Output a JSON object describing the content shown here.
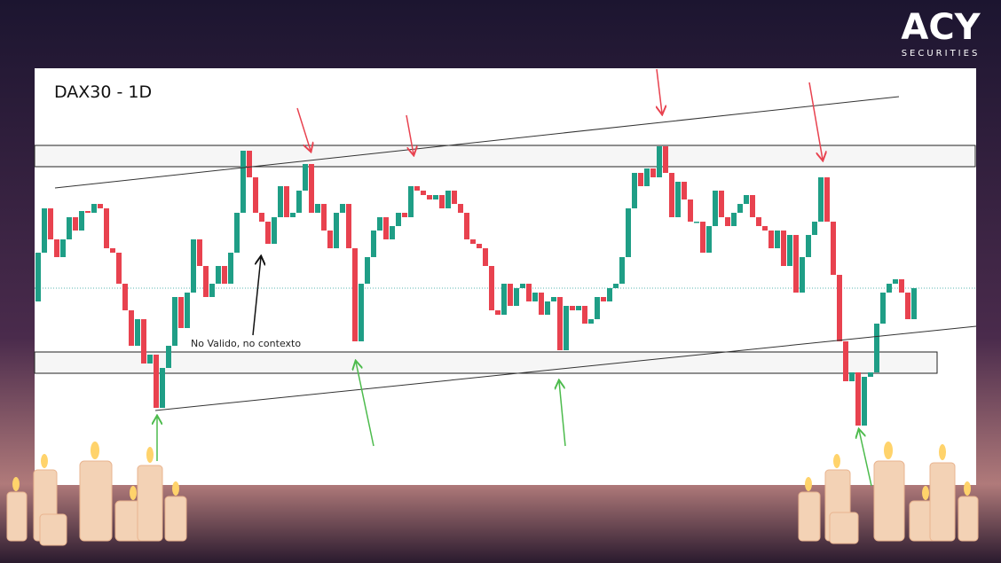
{
  "chart_data": {
    "type": "candlestick",
    "title": "DAX30 - 1D",
    "annotation": "No Valido, no contexto",
    "brand": {
      "logo": "ACY",
      "tagline": "SECURITIES"
    },
    "up_color": "#1f9e86",
    "down_color": "#e8424f",
    "ylim": [
      0,
      470
    ],
    "open": [
      207,
      262,
      312,
      277,
      257,
      277,
      302,
      287,
      309,
      307,
      317,
      312,
      267,
      262,
      227,
      197,
      157,
      187,
      137,
      147,
      87,
      132,
      157,
      212,
      177,
      217,
      277,
      247,
      212,
      227,
      247,
      227,
      262,
      307,
      377,
      347,
      307,
      297,
      272,
      302,
      337,
      302,
      307,
      332,
      362,
      307,
      317,
      287,
      267,
      307,
      317,
      267,
      162,
      227,
      257,
      287,
      302,
      277,
      292,
      307,
      302,
      337,
      332,
      327,
      322,
      327,
      312,
      332,
      317,
      307,
      277,
      272,
      267,
      247,
      197,
      192,
      227,
      202,
      222,
      227,
      207,
      217,
      192,
      207,
      212,
      152,
      202,
      197,
      202,
      182,
      187,
      212,
      207,
      222,
      227,
      257,
      312,
      352,
      337,
      357,
      347,
      382,
      352,
      302,
      342,
      322,
      297,
      297,
      262,
      292,
      332,
      302,
      292,
      307,
      317,
      327,
      302,
      292,
      287,
      267,
      287,
      247,
      282,
      217,
      257,
      282,
      297,
      347,
      297,
      237,
      162,
      117,
      127,
      67,
      122,
      127,
      182,
      217,
      227,
      232,
      217,
      187
    ],
    "close": [
      262,
      312,
      277,
      257,
      277,
      302,
      287,
      309,
      307,
      317,
      312,
      267,
      262,
      227,
      197,
      157,
      187,
      137,
      147,
      87,
      132,
      157,
      212,
      177,
      217,
      277,
      247,
      212,
      227,
      247,
      227,
      262,
      307,
      377,
      347,
      307,
      297,
      272,
      302,
      337,
      302,
      307,
      332,
      362,
      307,
      317,
      287,
      267,
      307,
      317,
      267,
      162,
      227,
      257,
      287,
      302,
      277,
      292,
      307,
      302,
      337,
      332,
      327,
      322,
      327,
      312,
      332,
      317,
      307,
      277,
      272,
      267,
      247,
      197,
      192,
      227,
      202,
      222,
      227,
      207,
      217,
      192,
      207,
      212,
      152,
      202,
      197,
      202,
      182,
      187,
      212,
      207,
      222,
      227,
      257,
      312,
      352,
      337,
      357,
      347,
      382,
      352,
      302,
      342,
      322,
      297,
      297,
      262,
      292,
      332,
      302,
      292,
      307,
      317,
      327,
      302,
      292,
      287,
      267,
      287,
      247,
      282,
      217,
      257,
      282,
      297,
      347,
      297,
      237,
      162,
      117,
      127,
      67,
      122,
      127,
      182,
      217,
      227,
      232,
      217,
      187,
      222
    ]
  }
}
